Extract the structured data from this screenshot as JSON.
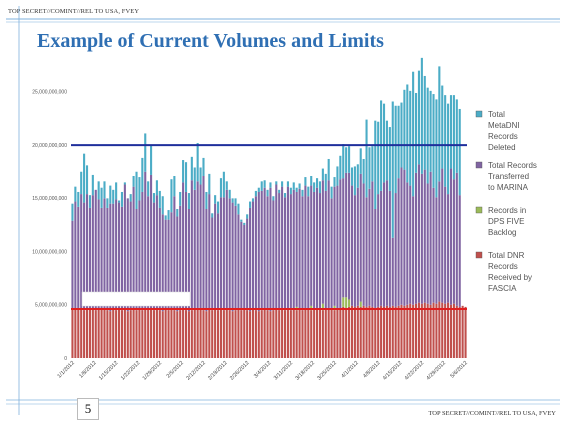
{
  "banner": {
    "top": "TOP SECRET//COMINT//REL TO USA, FVEY",
    "bottom": "TOP SECRET//COMINT//REL TO USA, FVEY"
  },
  "slide": {
    "title": "Example of  Current Volumes and Limits",
    "page_number": "5"
  },
  "colors": {
    "title": "#2f6fb3",
    "metadni": "#4bacc6",
    "marina": "#8064a2",
    "dps": "#9bbb59",
    "dnr": "#c0504d",
    "limit_blue": "#1f2f9c",
    "limit_red": "#e02020",
    "slide_lines": "#7fb0dc"
  },
  "chart_data": {
    "type": "bar",
    "stacked": true,
    "ylim": [
      0,
      28000000000
    ],
    "yticks": [
      0,
      5000000000,
      10000000000,
      15000000000,
      20000000000,
      25000000000
    ],
    "ytick_labels": [
      "0",
      "5,000,000,000",
      "10,000,000,000",
      "15,000,000,000",
      "20,000,000,000",
      "25,000,000,000"
    ],
    "xtick_labels": [
      "1/1/2012",
      "1/8/2012",
      "1/15/2012",
      "1/22/2012",
      "1/29/2012",
      "2/5/2012",
      "2/12/2012",
      "2/19/2012",
      "2/26/2012",
      "3/4/2012",
      "3/11/2012",
      "3/18/2012",
      "3/25/2012",
      "4/1/2012",
      "4/8/2012",
      "4/15/2012",
      "4/22/2012",
      "4/29/2012",
      "5/6/2012"
    ],
    "reference_lines": [
      {
        "value": 20000000000,
        "color": "#1f2f9c"
      },
      {
        "value": 4600000000,
        "color": "#e02020"
      }
    ],
    "legend": [
      {
        "label": "Total MetaDNI Records Deleted",
        "color": "#4bacc6"
      },
      {
        "label": "Total Records Transferred to MARINA",
        "color": "#8064a2"
      },
      {
        "label": "Records in DPS FIVE Backlog",
        "color": "#9bbb59"
      },
      {
        "label": "Total DNR Records Received by FASCIA",
        "color": "#c0504d"
      }
    ],
    "legend_position": "right",
    "gridlines": false,
    "series": [
      {
        "name": "Total DNR Records Received by FASCIA",
        "values": [
          4.6,
          4.6,
          4.7,
          4.6,
          4.5,
          4.6,
          4.7,
          4.6,
          4.5,
          4.6,
          4.7,
          4.6,
          4.5,
          4.4,
          4.6,
          4.5,
          4.6,
          4.5,
          4.6,
          4.4,
          4.5,
          4.6,
          4.5,
          4.6,
          4.5,
          4.6,
          4.7,
          4.6,
          4.5,
          4.6,
          4.5,
          4.4,
          4.6,
          4.5,
          4.6,
          4.5,
          4.4,
          4.5,
          4.6,
          4.5,
          4.4,
          4.5,
          4.6,
          4.7,
          4.6,
          4.5,
          4.4,
          4.6,
          4.5,
          4.6,
          4.5,
          4.6,
          4.5,
          4.6,
          4.5,
          4.4,
          4.5,
          4.6,
          4.5,
          4.6,
          4.5,
          4.4,
          4.6,
          4.5,
          4.4,
          4.5,
          4.6,
          4.5,
          4.4,
          4.5,
          4.6,
          4.5,
          4.6,
          4.5,
          4.6,
          4.5,
          4.6,
          4.5,
          4.6,
          4.5,
          4.7,
          4.6,
          4.5,
          4.6,
          4.7,
          4.6,
          4.5,
          4.6,
          4.7,
          4.6,
          4.5,
          4.6,
          4.7,
          4.8,
          4.7,
          4.8,
          4.9,
          4.8,
          4.9,
          4.8,
          4.9,
          4.8,
          4.9,
          4.8,
          4.7,
          4.8,
          4.9,
          4.8,
          4.9,
          4.8,
          4.9,
          4.8,
          4.9,
          5.0,
          4.9,
          5.0,
          5.1,
          5.0,
          5.1,
          5.2,
          5.1,
          5.2,
          5.1,
          5.0,
          5.2,
          5.1,
          5.3,
          5.2,
          5.1,
          5.2,
          5.0,
          5.1,
          4.9,
          4.8,
          4.9,
          4.8
        ]
      },
      {
        "name": "Records in DPS FIVE Backlog",
        "values": [
          0,
          0,
          0,
          0,
          0,
          0,
          0,
          0,
          0,
          0,
          0,
          0,
          0,
          0,
          0,
          0,
          0,
          0,
          0,
          0,
          0,
          0,
          0,
          0,
          0,
          0,
          0,
          0,
          0,
          0,
          0,
          0,
          0,
          0,
          0,
          0,
          0,
          0,
          0,
          0,
          0,
          0,
          0,
          0,
          0,
          0,
          0,
          0,
          0,
          0,
          0,
          0,
          0,
          0,
          0,
          0,
          0,
          0,
          0,
          0,
          0,
          0,
          0,
          0,
          0,
          0,
          0,
          0,
          0,
          0,
          0,
          0,
          0,
          0,
          0,
          0,
          0,
          0.3,
          0,
          0,
          0,
          0,
          0.4,
          0,
          0,
          0,
          0.6,
          0,
          0,
          0,
          0.4,
          0,
          0,
          0.9,
          1.0,
          0.7,
          0,
          0,
          0,
          0.5,
          0,
          0,
          0,
          0,
          0,
          0,
          0,
          0,
          0,
          0,
          0,
          0,
          0,
          0,
          0,
          0,
          0,
          0,
          0,
          0,
          0,
          0,
          0,
          0,
          0,
          0,
          0,
          0,
          0,
          0,
          0,
          0,
          0,
          0
        ]
      },
      {
        "name": "Total Records Transferred to MARINA",
        "values": [
          8.3,
          10.1,
          9.5,
          10.8,
          10.1,
          10.8,
          9.4,
          10.7,
          11.3,
          10.3,
          9.4,
          10.4,
          9.6,
          10.1,
          9.9,
          10.4,
          10.0,
          9.7,
          11.7,
          10.6,
          10.2,
          11.5,
          9.5,
          10.2,
          11.1,
          12.9,
          10.5,
          12.6,
          10.1,
          10.7,
          9.6,
          9.1,
          8.4,
          8.5,
          9.1,
          10.7,
          8.9,
          9.8,
          11.9,
          11.1,
          9.6,
          12.2,
          11.2,
          11.9,
          11.7,
          12.6,
          9.6,
          10.8,
          8.7,
          9.9,
          9.1,
          10.5,
          10.6,
          11.2,
          10.5,
          10.2,
          9.8,
          8.9,
          8.3,
          7.9,
          8.6,
          9.7,
          10.1,
          10.7,
          11.2,
          11.2,
          11.4,
          10.7,
          11.6,
          10.3,
          11.7,
          11.0,
          11.5,
          10.6,
          11.5,
          10.9,
          11.2,
          10.8,
          11.3,
          10.7,
          11.5,
          10.6,
          11.3,
          11.0,
          11.3,
          10.9,
          11.6,
          11.1,
          12.0,
          10.4,
          11.2,
          11.6,
          12.1,
          11.2,
          11.7,
          11.9,
          11.3,
          10.5,
          11.1,
          12.0,
          11.5,
          10.3,
          11.0,
          11.8,
          9.3,
          10.6,
          10.8,
          11.7,
          11.8,
          10.9,
          6.4,
          10.7,
          12.0,
          12.9,
          12.8,
          11.5,
          11.1,
          10.2,
          12.3,
          13.0,
          12.2,
          12.5,
          11.3,
          12.5,
          10.8,
          10.0,
          11.3,
          12.6,
          11.0,
          10.2,
          12.8,
          11.7,
          12.5,
          10.5
        ]
      },
      {
        "name": "Total MetaDNI Records Deleted",
        "values": [
          1.6,
          1.4,
          1.4,
          2.1,
          4.6,
          2.7,
          1.2,
          1.9,
          0,
          1.7,
          1.9,
          1.6,
          0.9,
          1.7,
          1.3,
          1.6,
          0.2,
          1.4,
          0.2,
          0,
          0.7,
          1.0,
          3.5,
          2.2,
          3.2,
          3.6,
          1.4,
          2.8,
          0.9,
          1.4,
          1.6,
          1.7,
          0.4,
          0.9,
          3.1,
          1.9,
          0.7,
          1.3,
          2.1,
          2.8,
          1.5,
          2.2,
          2.1,
          3.6,
          1.6,
          1.7,
          1.6,
          1.9,
          0.4,
          0.8,
          1.1,
          1.8,
          2.4,
          0.8,
          0.8,
          0.4,
          0.7,
          1.0,
          0.2,
          0.2,
          0.4,
          0.6,
          0.3,
          0.5,
          0.4,
          0.9,
          0.7,
          0.6,
          0.5,
          0.4,
          0.3,
          0.3,
          0.5,
          0.4,
          0.5,
          0.6,
          0.7,
          0.4,
          0.5,
          0.6,
          0.8,
          0.9,
          0.9,
          0.9,
          0.9,
          1.1,
          1.1,
          1.6,
          2.0,
          1.1,
          0.9,
          1.8,
          2.2,
          3.2,
          2.4,
          2.5,
          1.7,
          2.7,
          2.2,
          2.4,
          2.3,
          7.3,
          3.9,
          3.3,
          8.3,
          6.8,
          8.5,
          7.4,
          5.6,
          6.0,
          12.8,
          8.2,
          6.8,
          6.1,
          7.5,
          9.2,
          8.9,
          11.7,
          7.5,
          8.8,
          10.9,
          8.8,
          9.0,
          7.6,
          8.8,
          9.2,
          10.8,
          7.8,
          8.6,
          8.5,
          6.9,
          7.9,
          6.9,
          8.1
        ]
      }
    ],
    "value_units_note": ""
  }
}
